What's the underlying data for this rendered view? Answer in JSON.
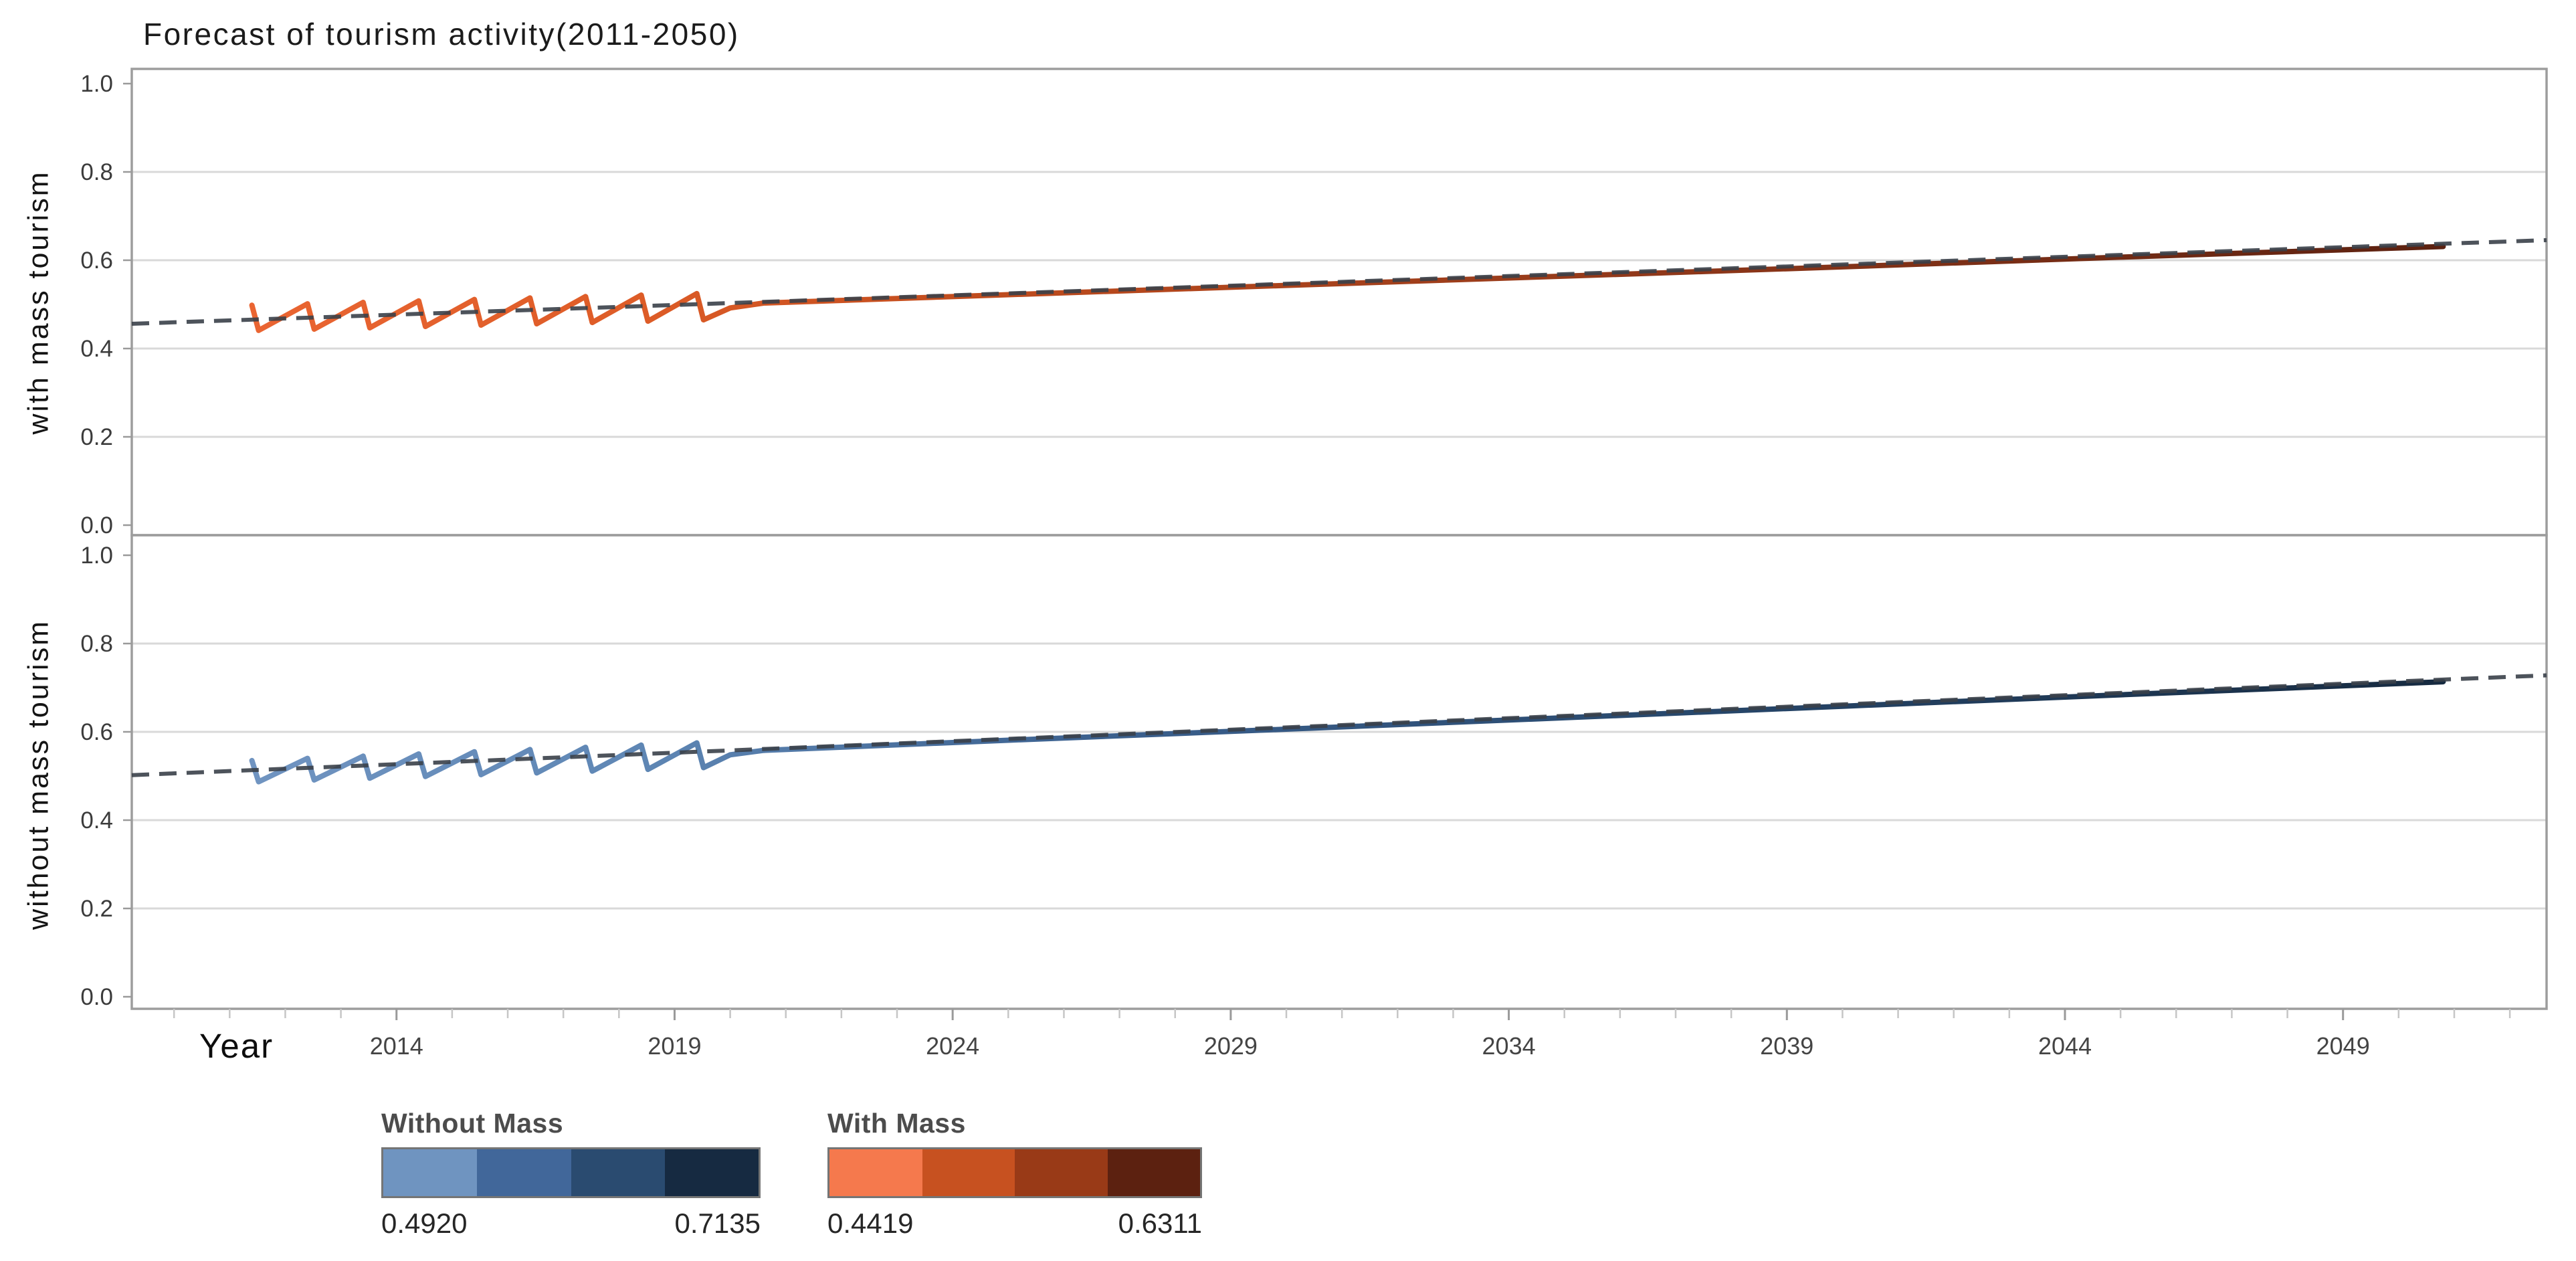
{
  "title": "Forecast of tourism activity(2011-2050)",
  "x_axis": {
    "label": "Year"
  },
  "panels_text": {
    "panel1_label": "with mass tourism",
    "panel2_label": "without mass tourism"
  },
  "legend": [
    {
      "title": "Without Mass",
      "min": "0.4920",
      "max": "0.7135",
      "colors": [
        "#6f94c0",
        "#41679a",
        "#2a4b70",
        "#162a41"
      ]
    },
    {
      "title": "With Mass",
      "min": "0.4419",
      "max": "0.6311",
      "colors": [
        "#f5794d",
        "#c75120",
        "#993a17",
        "#5c2110"
      ]
    }
  ],
  "colors": {
    "grid": "#d9d9d9",
    "frame": "#9d9d9d",
    "axis_spine": "#8a8a8a",
    "tick_minor": "#c6c6c6",
    "tick_major": "#9a9a9a",
    "tick_label": "#3b3b3b",
    "trend_dash": "#3a4049",
    "background": "#ffffff"
  },
  "chart_data": {
    "type": "line",
    "title": "Forecast of tourism activity(2011-2050)",
    "xlabel": "Year",
    "x_range": [
      2009.24,
      2052.66
    ],
    "x_major_ticks": [
      2014,
      2019,
      2024,
      2029,
      2034,
      2039,
      2044,
      2049
    ],
    "x_minor_tick_years": [
      2010,
      2052,
      1
    ],
    "y_ticks": [
      {
        "v": 1.0,
        "label": "1.0"
      },
      {
        "v": 0.8,
        "label": "0.8"
      },
      {
        "v": 0.6,
        "label": "0.6"
      },
      {
        "v": 0.4,
        "label": "0.4"
      },
      {
        "v": 0.2,
        "label": "0.2"
      },
      {
        "v": 0.0,
        "label": "0.0"
      }
    ],
    "gridline_values": [
      0.2,
      0.4,
      0.6,
      0.8
    ],
    "legend_position": "bottom-left",
    "grid": true,
    "panels": [
      {
        "id": "with-mass",
        "y_axis_label": "with mass tourism",
        "ylim": [
          0,
          1
        ],
        "series": [
          {
            "name": "With Mass observed + forecast",
            "style": "gradient-line",
            "gradient_colors": [
              "#ea6532",
              "#dd5c27",
              "#c24d1e",
              "#93391a",
              "#5c2110"
            ],
            "gradient_positions": [
              0,
              0.18,
              0.32,
              0.62,
              1
            ],
            "value_range": [
              0.4419,
              0.6311
            ],
            "points": [
              [
                2011.4,
                0.498
              ],
              [
                2011.52,
                0.441
              ],
              [
                2012.4,
                0.5013
              ],
              [
                2012.52,
                0.444
              ],
              [
                2013.4,
                0.5046
              ],
              [
                2013.52,
                0.447
              ],
              [
                2014.4,
                0.5079
              ],
              [
                2014.52,
                0.45
              ],
              [
                2015.4,
                0.5112
              ],
              [
                2015.52,
                0.453
              ],
              [
                2016.4,
                0.5145
              ],
              [
                2016.52,
                0.456
              ],
              [
                2017.4,
                0.5178
              ],
              [
                2017.52,
                0.459
              ],
              [
                2018.4,
                0.5211
              ],
              [
                2018.52,
                0.462
              ],
              [
                2019.4,
                0.5244
              ],
              [
                2019.52,
                0.465
              ],
              [
                2020.0,
                0.492
              ],
              [
                2020.6,
                0.503
              ],
              [
                2025,
                0.522
              ],
              [
                2030,
                0.543
              ],
              [
                2035,
                0.564
              ],
              [
                2040,
                0.585
              ],
              [
                2045,
                0.607
              ],
              [
                2050.8,
                0.6311
              ]
            ]
          },
          {
            "name": "With Mass trend",
            "style": "dashed-line",
            "points": [
              [
                2009.24,
                0.456
              ],
              [
                2052.66,
                0.6455
              ]
            ]
          }
        ]
      },
      {
        "id": "without-mass",
        "y_axis_label": "without mass tourism",
        "ylim": [
          0,
          1
        ],
        "series": [
          {
            "name": "Without Mass observed + forecast",
            "style": "gradient-line",
            "gradient_colors": [
              "#7094c1",
              "#5e86b4",
              "#3c618f",
              "#27476b",
              "#162a40"
            ],
            "gradient_positions": [
              0,
              0.18,
              0.38,
              0.66,
              1
            ],
            "value_range": [
              0.492,
              0.7135
            ],
            "points": [
              [
                2011.4,
                0.535
              ],
              [
                2011.52,
                0.487
              ],
              [
                2012.4,
                0.54
              ],
              [
                2012.52,
                0.491
              ],
              [
                2013.4,
                0.545
              ],
              [
                2013.52,
                0.495
              ],
              [
                2014.4,
                0.55
              ],
              [
                2014.52,
                0.499
              ],
              [
                2015.4,
                0.555
              ],
              [
                2015.52,
                0.503
              ],
              [
                2016.4,
                0.56
              ],
              [
                2016.52,
                0.507
              ],
              [
                2017.4,
                0.565
              ],
              [
                2017.52,
                0.511
              ],
              [
                2018.4,
                0.57
              ],
              [
                2018.52,
                0.515
              ],
              [
                2019.4,
                0.575
              ],
              [
                2019.52,
                0.519
              ],
              [
                2020.0,
                0.548
              ],
              [
                2020.6,
                0.558
              ],
              [
                2025,
                0.581
              ],
              [
                2030,
                0.606
              ],
              [
                2035,
                0.632
              ],
              [
                2040,
                0.658
              ],
              [
                2045,
                0.684
              ],
              [
                2050.8,
                0.7135
              ]
            ]
          },
          {
            "name": "Without Mass trend",
            "style": "dashed-line",
            "points": [
              [
                2009.24,
                0.502
              ],
              [
                2052.66,
                0.728
              ]
            ]
          }
        ]
      }
    ]
  }
}
